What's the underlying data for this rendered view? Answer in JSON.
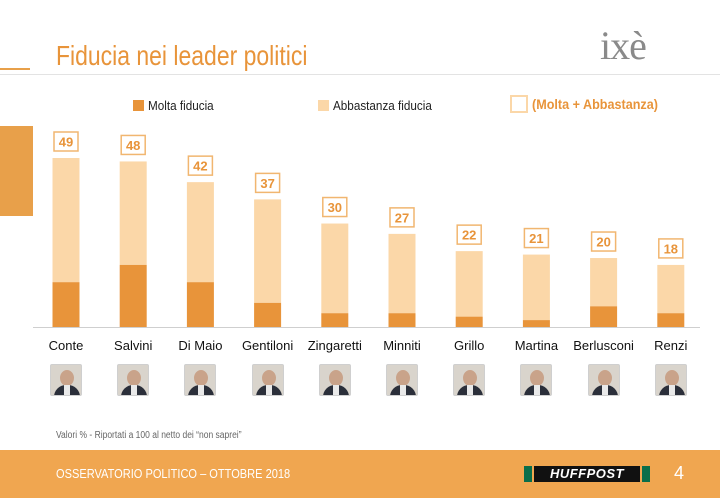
{
  "header": {
    "title": "Fiducia nei leader politici",
    "logo_text": "ixè"
  },
  "legend": {
    "molta": "Molta fiducia",
    "abbastanza": "Abbastanza fiducia",
    "total": "(Molta + Abbastanza)"
  },
  "colors": {
    "molta": "#e8943a",
    "abbastanza": "#fbd7a8",
    "label_border": "#f1b670",
    "accent": "#e8943a",
    "footer": "#f0a650"
  },
  "chart_data": {
    "type": "bar",
    "stacked": true,
    "categories": [
      "Conte",
      "Salvini",
      "Di Maio",
      "Gentiloni",
      "Zingaretti",
      "Minniti",
      "Grillo",
      "Martina",
      "Berlusconi",
      "Renzi"
    ],
    "totals": [
      49,
      48,
      42,
      37,
      30,
      27,
      22,
      21,
      20,
      18
    ],
    "series": [
      {
        "name": "Molta fiducia",
        "values": [
          13,
          18,
          13,
          7,
          4,
          4,
          3,
          2,
          6,
          4
        ]
      },
      {
        "name": "Abbastanza fiducia",
        "values": [
          36,
          30,
          29,
          30,
          26,
          23,
          19,
          19,
          14,
          14
        ]
      }
    ],
    "ylim": [
      0,
      49
    ],
    "grid": false
  },
  "footnote": "Valori % - Riportati a 100 al netto dei “non saprei”",
  "footer": {
    "text": "OSSERVATORIO POLITICO – OTTOBRE 2018",
    "brand": "HUFFPOST",
    "page": "4"
  },
  "portraits": [
    {
      "icon": "conte-portrait-icon"
    },
    {
      "icon": "salvini-portrait-icon"
    },
    {
      "icon": "di-maio-portrait-icon"
    },
    {
      "icon": "gentiloni-portrait-icon"
    },
    {
      "icon": "zingaretti-portrait-icon"
    },
    {
      "icon": "minniti-portrait-icon"
    },
    {
      "icon": "grillo-portrait-icon"
    },
    {
      "icon": "martina-portrait-icon"
    },
    {
      "icon": "berlusconi-portrait-icon"
    },
    {
      "icon": "renzi-portrait-icon"
    }
  ]
}
